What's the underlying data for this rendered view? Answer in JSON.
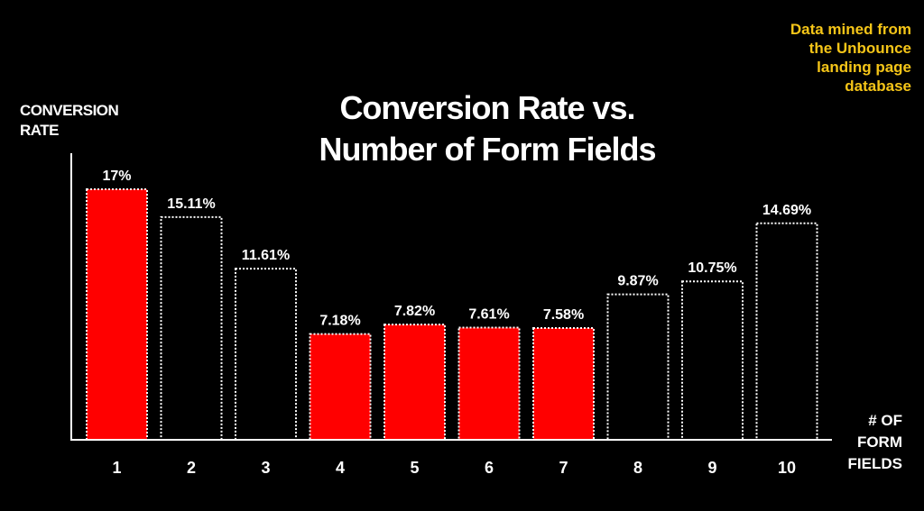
{
  "chart_data": {
    "type": "bar",
    "title_line1": "Conversion Rate vs.",
    "title_line2": "Number of Form Fields",
    "ylabel_line1": "CONVERSION",
    "ylabel_line2": "RATE",
    "xlabel_line1": "# OF",
    "xlabel_line2": "FORM",
    "xlabel_line3": "FIELDS",
    "annotation_lines": [
      "Data mined from",
      "the Unbounce",
      "landing page",
      "database"
    ],
    "categories": [
      "1",
      "2",
      "3",
      "4",
      "5",
      "6",
      "7",
      "8",
      "9",
      "10"
    ],
    "values": [
      17,
      15.11,
      11.61,
      7.18,
      7.82,
      7.61,
      7.58,
      9.87,
      10.75,
      14.69
    ],
    "value_labels": [
      "17%",
      "15.11%",
      "11.61%",
      "7.18%",
      "7.82%",
      "7.61%",
      "7.58%",
      "9.87%",
      "10.75%",
      "14.69%"
    ],
    "highlighted": [
      true,
      false,
      false,
      true,
      true,
      true,
      true,
      false,
      false,
      false
    ],
    "highlight_color": "#ff0000",
    "outline_color": "#ffffff",
    "annotation_color": "#f5c518",
    "background_color": "#000000",
    "ylim": [
      0,
      17
    ],
    "grid": false,
    "legend": "none"
  }
}
